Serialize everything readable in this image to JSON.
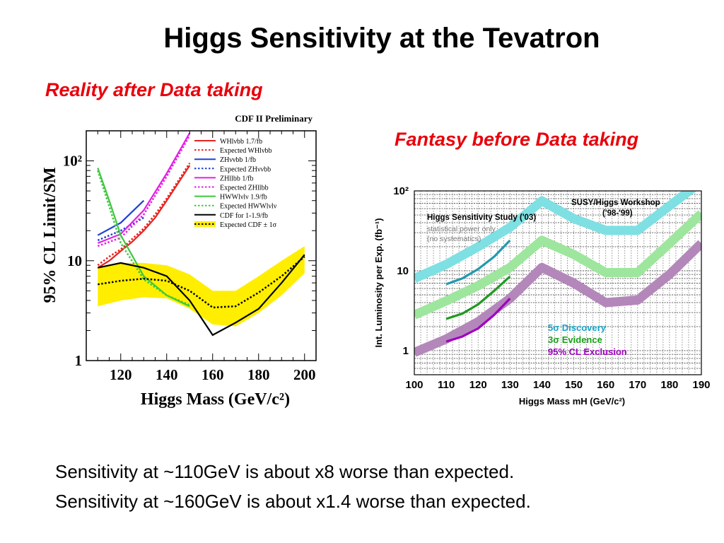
{
  "slide": {
    "title": "Higgs Sensitivity at the Tevatron",
    "left_subtitle": "Reality after Data taking",
    "right_subtitle": "Fantasy before Data taking",
    "conclusion_lines": [
      "Sensitivity at ~110GeV is about x8 worse than expected.",
      "Sensitivity at ~160GeV is about x1.4 worse than expected."
    ]
  },
  "chart_data": [
    {
      "type": "line",
      "title": "CDF II Preliminary",
      "xlabel": "Higgs Mass (GeV/c²)",
      "ylabel": "95% CL Limit/SM",
      "xlim": [
        105,
        205
      ],
      "ylim": [
        1,
        200
      ],
      "yscale": "log",
      "x_ticks": [
        120,
        140,
        160,
        180,
        200
      ],
      "y_ticks": [
        {
          "value": 1,
          "label": "1"
        },
        {
          "value": 10,
          "label": "10"
        },
        {
          "value": 100,
          "label": "10²"
        }
      ],
      "legend_position": "top-right",
      "band": {
        "name": "Expected CDF ± 1σ",
        "color": "#ffee00",
        "x": [
          110,
          120,
          130,
          140,
          150,
          160,
          170,
          180,
          190,
          200
        ],
        "low": [
          3.5,
          4.0,
          4.3,
          4.2,
          3.3,
          2.3,
          2.2,
          3.0,
          4.5,
          7.5
        ],
        "high": [
          8.5,
          9.5,
          9.5,
          9.0,
          7.3,
          5.0,
          5.0,
          7.0,
          10.0,
          14.0
        ]
      },
      "series": [
        {
          "name": "WHlνbb 1.7/fb",
          "color": "#e8231f",
          "style": "solid",
          "x": [
            110,
            115,
            120,
            125,
            130,
            135,
            140,
            145,
            150
          ],
          "y": [
            8.5,
            10,
            12.5,
            15.5,
            20,
            27,
            40,
            60,
            90
          ]
        },
        {
          "name": "Expected WHlνbb",
          "color": "#e8231f",
          "style": "dotted",
          "x": [
            110,
            115,
            120,
            125,
            130,
            135,
            140,
            145,
            150
          ],
          "y": [
            9,
            11,
            13,
            16.5,
            21,
            29,
            42,
            63,
            95
          ]
        },
        {
          "name": "ZHννbb 1/fb",
          "color": "#1f3fd6",
          "style": "solid",
          "x": [
            110,
            120,
            130
          ],
          "y": [
            18,
            24,
            40
          ]
        },
        {
          "name": "Expected ZHννbb",
          "color": "#1f3fd6",
          "style": "dotted",
          "x": [
            110,
            120,
            130
          ],
          "y": [
            16,
            20,
            27
          ]
        },
        {
          "name": "ZHllbb 1/fb",
          "color": "#e61ee6",
          "style": "solid",
          "x": [
            110,
            120,
            130,
            140,
            150
          ],
          "y": [
            15,
            18.5,
            32,
            75,
            190
          ]
        },
        {
          "name": "Expected ZHllbb",
          "color": "#e61ee6",
          "style": "dotted",
          "x": [
            110,
            120,
            130,
            140,
            150
          ],
          "y": [
            14,
            17,
            29,
            70,
            180
          ]
        },
        {
          "name": "HWWlνlν 1.9/fb",
          "color": "#3fc83f",
          "style": "solid",
          "x": [
            110,
            115,
            120,
            130,
            140,
            150
          ],
          "y": [
            85,
            40,
            18,
            7,
            4.5,
            3.5
          ]
        },
        {
          "name": "Expected HWWlνlν",
          "color": "#3fc83f",
          "style": "dotted",
          "x": [
            110,
            115,
            120,
            130,
            140,
            150
          ],
          "y": [
            80,
            35,
            15,
            6.5,
            4.5,
            3.6
          ]
        },
        {
          "name": "CDF for 1-1.9/fb",
          "color": "#000000",
          "style": "solid",
          "x": [
            110,
            120,
            130,
            140,
            150,
            160,
            170,
            180,
            190,
            200
          ],
          "y": [
            8.5,
            9.5,
            8.5,
            7,
            4,
            1.8,
            2.4,
            3.3,
            6,
            11.5
          ]
        },
        {
          "name": "Expected CDF ± 1σ",
          "color": "#000000",
          "style": "dotted",
          "x": [
            110,
            120,
            130,
            140,
            150,
            160,
            170,
            180,
            190,
            200
          ],
          "y": [
            5.8,
            6.3,
            6.6,
            6.3,
            5.0,
            3.4,
            3.5,
            4.8,
            7.0,
            11.0
          ]
        }
      ]
    },
    {
      "type": "line",
      "title": "",
      "xlabel": "Higgs Mass mH (GeV/c²)",
      "ylabel": "Int. Luminosity per Exp. (fb⁻¹)",
      "xlim": [
        100,
        190
      ],
      "ylim": [
        0.5,
        100
      ],
      "yscale": "log",
      "x_ticks": [
        100,
        110,
        120,
        130,
        140,
        150,
        160,
        170,
        180,
        190
      ],
      "y_ticks": [
        {
          "value": 1,
          "label": "1"
        },
        {
          "value": 10,
          "label": "10"
        },
        {
          "value": 100,
          "label": "10²"
        }
      ],
      "grid": true,
      "legend_position": "bottom-center",
      "annotations": [
        {
          "text": "SUSY/Higgs Workshop",
          "color": "#000000"
        },
        {
          "text": "('98-'99)",
          "color": "#000000"
        },
        {
          "text": "Higgs Sensitivity Study ('03)",
          "color": "#000000"
        },
        {
          "text": "statistical power only",
          "color": "#777777"
        },
        {
          "text": "(no systematics)",
          "color": "#777777"
        }
      ],
      "series": [
        {
          "name": "5σ Discovery",
          "color": "#7ee0e3",
          "style": "band",
          "x": [
            100,
            110,
            120,
            130,
            140,
            150,
            160,
            170,
            180,
            190
          ],
          "y": [
            8,
            12,
            20,
            35,
            75,
            45,
            32,
            32,
            65,
            130
          ]
        },
        {
          "name": "3σ Evidence",
          "color": "#9ee69e",
          "style": "band",
          "x": [
            100,
            110,
            120,
            130,
            140,
            150,
            160,
            170,
            180,
            190
          ],
          "y": [
            2.8,
            4.2,
            6.5,
            11,
            24,
            16,
            9.5,
            9.5,
            22,
            52
          ]
        },
        {
          "name": "95% CL Exclusion",
          "color": "#b487ba",
          "style": "band",
          "x": [
            100,
            110,
            120,
            130,
            140,
            150,
            160,
            170,
            180,
            190
          ],
          "y": [
            0.95,
            1.4,
            2.3,
            4.5,
            11,
            7,
            4.0,
            4.3,
            9,
            22
          ]
        },
        {
          "name": "5σ Discovery ('03)",
          "color": "#2299b2",
          "style": "solid",
          "x": [
            110,
            115,
            120,
            125,
            130
          ],
          "y": [
            6.8,
            8,
            10.5,
            15,
            24
          ]
        },
        {
          "name": "3σ Evidence ('03)",
          "color": "#1f9a1f",
          "style": "solid",
          "x": [
            110,
            115,
            120,
            125,
            130
          ],
          "y": [
            2.5,
            2.9,
            3.8,
            5.6,
            8.5
          ]
        },
        {
          "name": "95% CL Exclusion ('03)",
          "color": "#a000c0",
          "style": "solid",
          "x": [
            110,
            115,
            120,
            125,
            130
          ],
          "y": [
            1.3,
            1.5,
            1.9,
            2.8,
            4.5
          ]
        }
      ],
      "legend": [
        {
          "text": "5σ Discovery",
          "color": "#1aa3c8"
        },
        {
          "text": "3σ Evidence",
          "color": "#16a016"
        },
        {
          "text": "95% CL Exclusion",
          "color": "#a000c0"
        }
      ]
    }
  ]
}
